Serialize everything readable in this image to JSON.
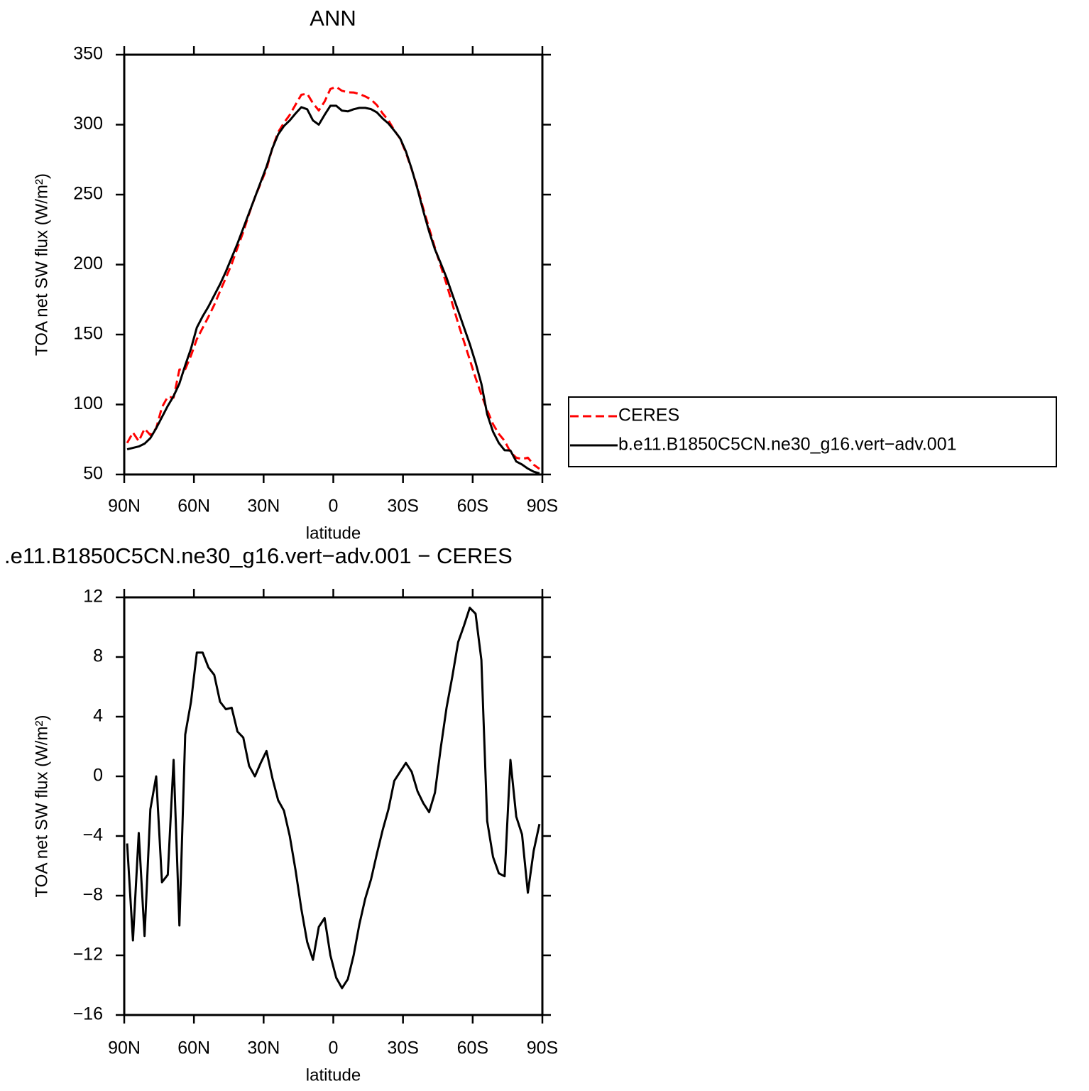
{
  "chart_data": [
    {
      "type": "line",
      "title": "ANN",
      "xlabel": "latitude",
      "ylabel": "TOA net SW flux (W/m²)",
      "x": [
        88.75,
        86.25,
        83.75,
        81.25,
        78.75,
        76.25,
        73.75,
        71.25,
        68.75,
        66.25,
        63.75,
        61.25,
        58.75,
        56.25,
        53.75,
        51.25,
        48.75,
        46.25,
        43.75,
        41.25,
        38.75,
        36.25,
        33.75,
        31.25,
        28.75,
        26.25,
        23.75,
        21.25,
        18.75,
        16.25,
        13.75,
        11.25,
        8.75,
        6.25,
        3.75,
        1.25,
        -1.25,
        -3.75,
        -6.25,
        -8.75,
        -11.25,
        -13.75,
        -16.25,
        -18.75,
        -21.25,
        -23.75,
        -26.25,
        -28.75,
        -31.25,
        -33.75,
        -36.25,
        -38.75,
        -41.25,
        -43.75,
        -46.25,
        -48.75,
        -51.25,
        -53.75,
        -56.25,
        -58.75,
        -61.25,
        -63.75,
        -66.25,
        -68.75,
        -71.25,
        -73.75,
        -76.25,
        -78.75,
        -81.25,
        -83.75,
        -86.25,
        -88.75
      ],
      "series": [
        {
          "name": "CERES",
          "color": "#ff0000",
          "style": "dashed",
          "values": [
            72.5,
            80,
            73.8,
            82.7,
            78.2,
            83,
            98.1,
            105.6,
            104.9,
            125,
            125.2,
            135,
            146.7,
            154.7,
            162.7,
            171.2,
            181,
            190.5,
            200.4,
            212,
            223.4,
            236.3,
            248,
            258.1,
            268.3,
            283.1,
            294.6,
            301.3,
            307,
            314.3,
            321.4,
            322.1,
            315.3,
            310.1,
            316.5,
            325.5,
            327,
            324.2,
            323.1,
            323,
            321.9,
            320.2,
            318,
            314,
            308,
            303,
            296,
            290,
            280,
            268,
            255,
            240,
            226,
            212,
            199,
            186,
            172,
            158,
            145,
            132,
            119,
            107,
            96,
            86,
            79,
            74,
            66,
            62,
            61,
            62,
            57,
            54
          ]
        },
        {
          "name": "b.e11.B1850C5CN.ne30_g16.vert−adv.001",
          "color": "#000000",
          "style": "solid",
          "values": [
            68,
            69,
            70,
            72,
            76,
            83,
            91,
            99,
            106,
            115,
            128,
            140,
            155,
            163,
            170,
            178,
            186,
            195,
            205,
            215,
            226,
            237,
            248,
            259,
            270,
            283,
            293,
            299,
            303,
            308,
            312.5,
            311,
            303,
            300,
            307,
            313.5,
            313.5,
            310,
            309.5,
            311,
            312,
            312,
            311.1,
            308.8,
            304.4,
            300.8,
            295.7,
            290.3,
            280.9,
            268.3,
            254,
            238.2,
            223.6,
            210.9,
            200.9,
            190.6,
            178.7,
            167,
            155.1,
            143.3,
            129.9,
            114.8,
            93,
            80.6,
            72.5,
            67.3,
            67.1,
            59.3,
            57.1,
            54.2,
            52,
            50.8
          ]
        }
      ],
      "xlim": [
        90,
        -90
      ],
      "xticks": [
        {
          "value": 90,
          "label": "90N"
        },
        {
          "value": 60,
          "label": "60N"
        },
        {
          "value": 30,
          "label": "30N"
        },
        0,
        {
          "value": -30,
          "label": "30S"
        },
        {
          "value": -60,
          "label": "60S"
        },
        {
          "value": -90,
          "label": "90S"
        }
      ],
      "ylim": [
        50,
        350
      ],
      "yticks": [
        50,
        100,
        150,
        200,
        250,
        300,
        350
      ],
      "grid": false,
      "legend": "right"
    },
    {
      "type": "line",
      "title": ".e11.B1850C5CN.ne30_g16.vert−adv.001 − CERES",
      "xlabel": "latitude",
      "ylabel": "TOA net SW flux (W/m²)",
      "x": [
        88.75,
        86.25,
        83.75,
        81.25,
        78.75,
        76.25,
        73.75,
        71.25,
        68.75,
        66.25,
        63.75,
        61.25,
        58.75,
        56.25,
        53.75,
        51.25,
        48.75,
        46.25,
        43.75,
        41.25,
        38.75,
        36.25,
        33.75,
        31.25,
        28.75,
        26.25,
        23.75,
        21.25,
        18.75,
        16.25,
        13.75,
        11.25,
        8.75,
        6.25,
        3.75,
        1.25,
        -1.25,
        -3.75,
        -6.25,
        -8.75,
        -11.25,
        -13.75,
        -16.25,
        -18.75,
        -21.25,
        -23.75,
        -26.25,
        -28.75,
        -31.25,
        -33.75,
        -36.25,
        -38.75,
        -41.25,
        -43.75,
        -46.25,
        -48.75,
        -51.25,
        -53.75,
        -56.25,
        -58.75,
        -61.25,
        -63.75,
        -66.25,
        -68.75,
        -71.25,
        -73.75,
        -76.25,
        -78.75,
        -81.25,
        -83.75,
        -86.25,
        -88.75
      ],
      "values": [
        -4.5,
        -11,
        -3.8,
        -10.7,
        -2.2,
        0,
        -7.1,
        -6.6,
        1.1,
        -10,
        2.8,
        5,
        8.3,
        8.3,
        7.3,
        6.8,
        5,
        4.5,
        4.6,
        3,
        2.6,
        0.7,
        0,
        0.9,
        1.7,
        -0.1,
        -1.6,
        -2.3,
        -4,
        -6.3,
        -8.9,
        -11.1,
        -12.3,
        -10.1,
        -9.5,
        -12,
        -13.5,
        -14.2,
        -13.6,
        -12,
        -9.9,
        -8.2,
        -6.9,
        -5.2,
        -3.6,
        -2.2,
        -0.3,
        0.3,
        0.9,
        0.3,
        -1,
        -1.8,
        -2.4,
        -1.1,
        1.9,
        4.6,
        6.7,
        9,
        10.1,
        11.3,
        10.9,
        7.8,
        -3,
        -5.4,
        -6.5,
        -6.7,
        1.1,
        -2.7,
        -3.9,
        -7.8,
        -5,
        -3.2
      ],
      "color": "#000000",
      "xlim": [
        90,
        -90
      ],
      "xticks": [
        {
          "value": 90,
          "label": "90N"
        },
        {
          "value": 60,
          "label": "60N"
        },
        {
          "value": 30,
          "label": "30N"
        },
        0,
        {
          "value": -30,
          "label": "30S"
        },
        {
          "value": -60,
          "label": "60S"
        },
        {
          "value": -90,
          "label": "90S"
        }
      ],
      "ylim": [
        -16,
        12
      ],
      "yticks": [
        {
          "value": -16,
          "label": "−16"
        },
        {
          "value": -12,
          "label": "−12"
        },
        {
          "value": -8,
          "label": "−8"
        },
        {
          "value": -4,
          "label": "−4"
        },
        0,
        4,
        8,
        12
      ],
      "grid": false
    }
  ]
}
